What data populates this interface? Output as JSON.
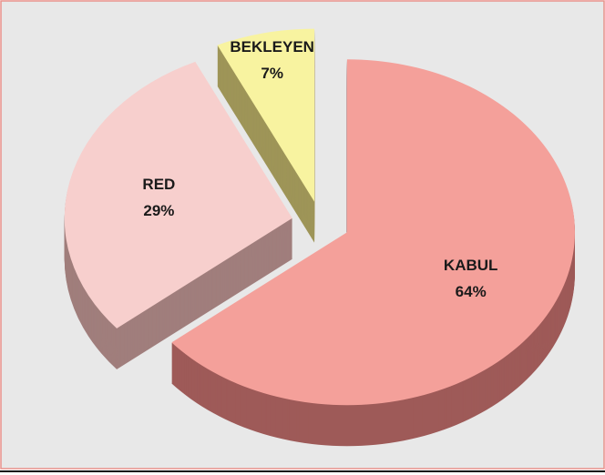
{
  "chart_data": {
    "type": "pie",
    "categories": [
      "KABUL",
      "RED",
      "BEKLEYEN"
    ],
    "values": [
      64,
      29,
      7
    ],
    "value_labels": [
      "64%",
      "29%",
      "7%"
    ],
    "colors": [
      "#f4a09a",
      "#f7cfcd",
      "#f8f3a0"
    ],
    "side_colors": [
      "#9e5a58",
      "#a07e7c",
      "#9e9558"
    ],
    "start_angle": 0,
    "exploded": true,
    "three_d": true
  }
}
